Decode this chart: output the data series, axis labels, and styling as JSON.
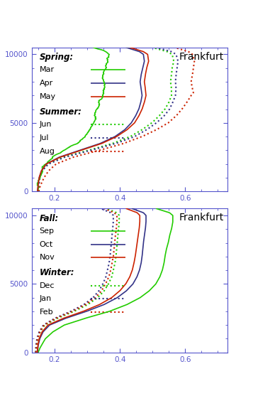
{
  "title": "Frankfurt",
  "ylim": [
    0,
    10500
  ],
  "yticks": [
    0,
    5000,
    10000
  ],
  "xlim": [
    0.13,
    0.73
  ],
  "xticks": [
    0.2,
    0.4,
    0.6
  ],
  "tick_color": "#5555cc",
  "axis_color": "#5555cc",
  "bg_color": "#ffffff",
  "panel1_legend1": "Spring:",
  "panel1_legend2": "Summer:",
  "panel2_legend1": "Fall:",
  "panel2_legend2": "Winter:",
  "spring_months": [
    "Mar",
    "Apr",
    "May"
  ],
  "summer_months": [
    "Jun",
    "Jul",
    "Aug"
  ],
  "fall_months": [
    "Sep",
    "Oct",
    "Nov"
  ],
  "winter_months": [
    "Dec",
    "Jan",
    "Feb"
  ],
  "green_color": "#22cc00",
  "blue_color": "#333388",
  "red_color": "#cc2200"
}
